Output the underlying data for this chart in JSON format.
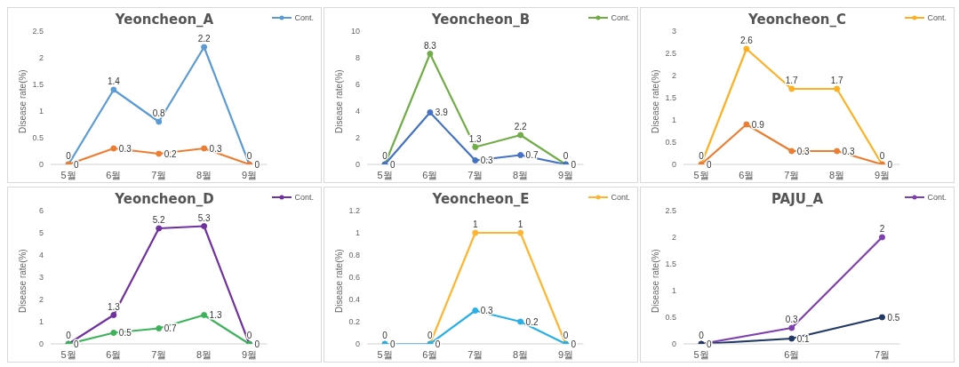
{
  "chart_data": [
    {
      "type": "line",
      "title": "Yeoncheon_A",
      "ylabel": "Disease rate(%)",
      "categories": [
        "5월",
        "6월",
        "7월",
        "8월",
        "9월"
      ],
      "ylim": [
        0,
        2.5
      ],
      "yticks": [
        0,
        0.5,
        1,
        1.5,
        2,
        2.5
      ],
      "grid": false,
      "legend": "top right",
      "marker": "circle",
      "data_labels": true,
      "series": [
        {
          "name": "Cont.",
          "color": "#5b9bd5",
          "values": [
            0,
            1.4,
            0.8,
            2.2,
            0
          ]
        },
        {
          "color": "#ed7d31",
          "values": [
            0,
            0.3,
            0.2,
            0.3,
            0
          ]
        }
      ]
    },
    {
      "type": "line",
      "title": "Yeoncheon_B",
      "ylabel": "Disease rate(%)",
      "categories": [
        "5월",
        "6월",
        "7월",
        "8월",
        "9월"
      ],
      "ylim": [
        0,
        10
      ],
      "yticks": [
        0,
        2,
        4,
        6,
        8,
        10
      ],
      "grid": false,
      "legend": "top right",
      "marker": "circle",
      "data_labels": true,
      "series": [
        {
          "name": "Cont.",
          "color": "#70ad47",
          "values": [
            0,
            8.3,
            1.3,
            2.2,
            0
          ]
        },
        {
          "color": "#4472c4",
          "values": [
            0,
            3.9,
            0.3,
            0.7,
            0
          ]
        }
      ]
    },
    {
      "type": "line",
      "title": "Yeoncheon_C",
      "ylabel": "Disease rate(%)",
      "categories": [
        "5월",
        "6월",
        "7월",
        "8월",
        "9월"
      ],
      "ylim": [
        0,
        3
      ],
      "yticks": [
        0,
        0.5,
        1,
        1.5,
        2,
        2.5,
        3
      ],
      "grid": false,
      "legend": "top right",
      "marker": "circle",
      "data_labels": true,
      "series": [
        {
          "name": "Cont.",
          "color": "#ffb020",
          "values": [
            0,
            2.6,
            1.7,
            1.7,
            0
          ]
        },
        {
          "color": "#ed7d31",
          "values": [
            0,
            0.9,
            0.3,
            0.3,
            0
          ]
        }
      ]
    },
    {
      "type": "line",
      "title": "Yeoncheon_D",
      "ylabel": "Disease rate(%)",
      "categories": [
        "5월",
        "6월",
        "7월",
        "8월",
        "9월"
      ],
      "ylim": [
        0,
        6
      ],
      "yticks": [
        0,
        1,
        2,
        3,
        4,
        5,
        6
      ],
      "grid": false,
      "legend": "top right",
      "marker": "circle",
      "data_labels": true,
      "series": [
        {
          "name": "Cont.",
          "color": "#7030a0",
          "values": [
            0,
            1.3,
            5.2,
            5.3,
            0
          ]
        },
        {
          "color": "#3cb35a",
          "values": [
            0,
            0.5,
            0.7,
            1.3,
            0
          ]
        }
      ]
    },
    {
      "type": "line",
      "title": "Yeoncheon_E",
      "ylabel": "Disease rate(%)",
      "categories": [
        "5월",
        "6월",
        "7월",
        "8월",
        "9월"
      ],
      "ylim": [
        0,
        1.2
      ],
      "yticks": [
        0,
        0.2,
        0.4,
        0.6,
        0.8,
        1,
        1.2
      ],
      "grid": false,
      "legend": "top right",
      "marker": "circle",
      "data_labels": true,
      "series": [
        {
          "name": "Cont.",
          "color": "#ffb52e",
          "values": [
            0,
            0,
            1,
            1,
            0
          ]
        },
        {
          "color": "#29b0e6",
          "values": [
            0,
            0,
            0.3,
            0.2,
            0
          ]
        }
      ]
    },
    {
      "type": "line",
      "title": "PAJU_A",
      "ylabel": "Disease rate(%)",
      "categories": [
        "5월",
        "6월",
        "7월"
      ],
      "ylim": [
        0,
        2.5
      ],
      "yticks": [
        0,
        0.5,
        1,
        1.5,
        2,
        2.5
      ],
      "grid": false,
      "legend": "top right",
      "marker": "circle",
      "data_labels": true,
      "series": [
        {
          "name": "Cont.",
          "color": "#7e3fb0",
          "values": [
            0,
            0.3,
            2
          ]
        },
        {
          "color": "#203864",
          "values": [
            0,
            0.1,
            0.5
          ]
        }
      ]
    }
  ]
}
